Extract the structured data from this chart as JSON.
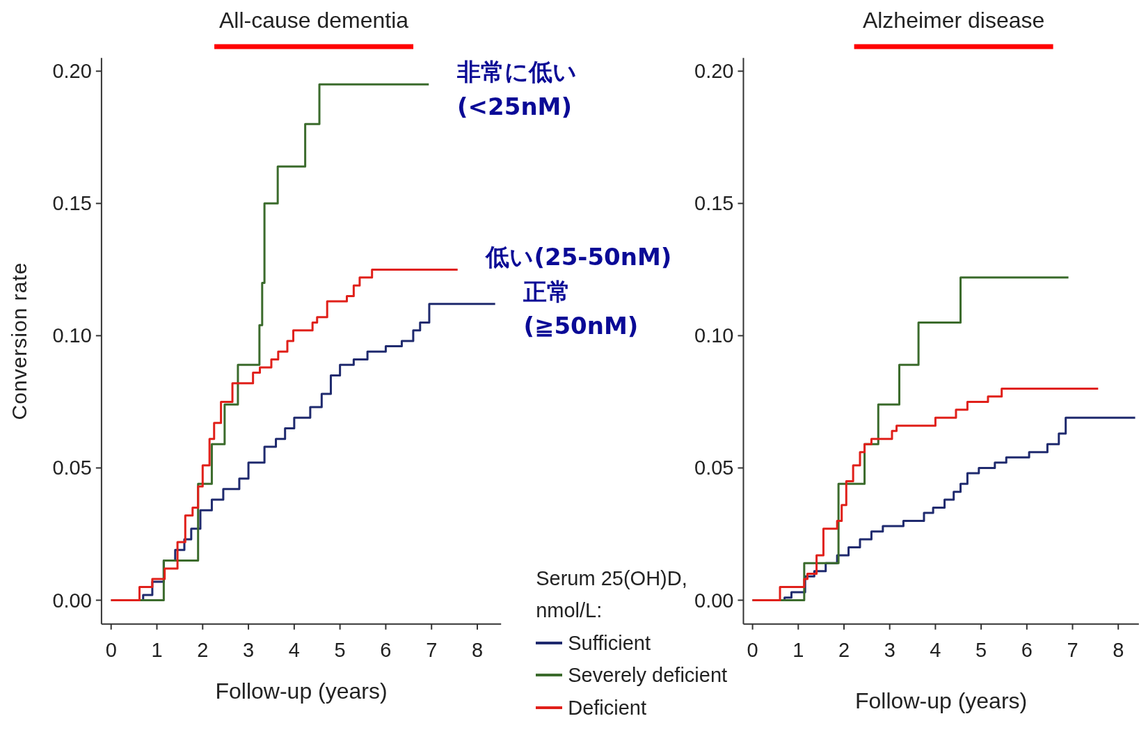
{
  "chart_data": [
    {
      "type": "step",
      "title": "All-cause dementia",
      "xlabel": "Follow-up (years)",
      "ylabel": "Conversion rate",
      "legend_title": "Serum 25(OH)D, nmol/L:",
      "legend": "bottom right",
      "xlim": [
        -0.21,
        8.52
      ],
      "ylim": [
        -0.009,
        0.205
      ],
      "xticks": [
        0,
        1,
        2,
        3,
        4,
        5,
        6,
        7,
        8
      ],
      "yticks": [
        {
          "value": 0,
          "label": "0.00"
        },
        {
          "value": 0.05,
          "label": "0.05"
        },
        {
          "value": 0.1,
          "label": "0.10"
        },
        {
          "value": 0.15,
          "label": "0.15"
        },
        {
          "value": 0.2,
          "label": "0.20"
        }
      ],
      "series": [
        {
          "name": "Sufficient",
          "color": "#1f2a6e",
          "x": [
            0,
            0.7,
            0.9,
            1.15,
            1.4,
            1.6,
            1.75,
            1.95,
            2.2,
            2.45,
            2.8,
            3.0,
            3.35,
            3.6,
            3.8,
            4.0,
            4.35,
            4.6,
            4.8,
            5.0,
            5.3,
            5.6,
            6.0,
            6.35,
            6.6,
            6.75,
            6.95,
            8.39
          ],
          "values": [
            0,
            0.002,
            0.007,
            0.015,
            0.019,
            0.023,
            0.027,
            0.034,
            0.038,
            0.042,
            0.046,
            0.052,
            0.058,
            0.061,
            0.065,
            0.069,
            0.073,
            0.078,
            0.085,
            0.089,
            0.091,
            0.094,
            0.096,
            0.098,
            0.102,
            0.105,
            0.112,
            0.112
          ]
        },
        {
          "name": "Severely deficient",
          "color": "#3b6b2c",
          "x": [
            0,
            1.15,
            1.9,
            2.2,
            2.48,
            2.77,
            3.24,
            3.3,
            3.35,
            3.64,
            4.24,
            4.55,
            6.94
          ],
          "values": [
            0,
            0.015,
            0.044,
            0.059,
            0.074,
            0.089,
            0.104,
            0.12,
            0.15,
            0.164,
            0.18,
            0.195,
            0.195
          ]
        },
        {
          "name": "Deficient",
          "color": "#e0201a",
          "x": [
            0,
            0.62,
            0.9,
            1.17,
            1.45,
            1.62,
            1.78,
            1.9,
            2.0,
            2.15,
            2.25,
            2.4,
            2.65,
            3.1,
            3.25,
            3.5,
            3.65,
            3.85,
            3.98,
            4.4,
            4.5,
            4.72,
            5.15,
            5.3,
            5.43,
            5.7,
            7.57
          ],
          "values": [
            0,
            0.005,
            0.008,
            0.012,
            0.022,
            0.032,
            0.035,
            0.043,
            0.051,
            0.061,
            0.067,
            0.075,
            0.082,
            0.086,
            0.088,
            0.091,
            0.094,
            0.098,
            0.102,
            0.105,
            0.107,
            0.113,
            0.115,
            0.119,
            0.122,
            0.125,
            0.125
          ]
        }
      ],
      "annotations": [
        {
          "text": "非常に低い (<25nM)",
          "x": 6.94,
          "y": 0.195
        },
        {
          "text": "低い(25-50nM)",
          "x": 7.57,
          "y": 0.125
        },
        {
          "text": "正常 (≧50nM)",
          "x": 8.39,
          "y": 0.112
        }
      ]
    },
    {
      "type": "step",
      "title": "Alzheimer disease",
      "xlabel": "Follow-up (years)",
      "xlim": [
        -0.2,
        8.45
      ],
      "ylim": [
        -0.009,
        0.205
      ],
      "xticks": [
        0,
        1,
        2,
        3,
        4,
        5,
        6,
        7,
        8
      ],
      "yticks": [
        {
          "value": 0,
          "label": "0.00"
        },
        {
          "value": 0.05,
          "label": "0.05"
        },
        {
          "value": 0.1,
          "label": "0.10"
        },
        {
          "value": 0.15,
          "label": "0.15"
        },
        {
          "value": 0.2,
          "label": "0.20"
        }
      ],
      "series": [
        {
          "color": "#1f2a6e",
          "x": [
            0,
            0.7,
            0.85,
            1.15,
            1.35,
            1.6,
            1.85,
            2.1,
            2.35,
            2.6,
            2.85,
            3.3,
            3.75,
            3.95,
            4.2,
            4.4,
            4.55,
            4.7,
            4.95,
            5.3,
            5.55,
            6.05,
            6.45,
            6.7,
            6.85,
            8.37
          ],
          "values": [
            0,
            0.001,
            0.003,
            0.009,
            0.011,
            0.014,
            0.017,
            0.02,
            0.023,
            0.026,
            0.028,
            0.03,
            0.033,
            0.035,
            0.038,
            0.041,
            0.044,
            0.048,
            0.05,
            0.052,
            0.054,
            0.056,
            0.059,
            0.063,
            0.069,
            0.069
          ]
        },
        {
          "color": "#3b6b2c",
          "x": [
            0,
            1.13,
            1.88,
            2.45,
            2.75,
            3.21,
            3.63,
            4.55,
            6.91
          ],
          "values": [
            0,
            0.014,
            0.044,
            0.059,
            0.074,
            0.089,
            0.105,
            0.122,
            0.122
          ]
        },
        {
          "color": "#e0201a",
          "x": [
            0,
            0.6,
            1.13,
            1.2,
            1.4,
            1.55,
            1.85,
            1.95,
            2.05,
            2.2,
            2.35,
            2.45,
            2.6,
            3.05,
            3.15,
            4.0,
            4.45,
            4.7,
            5.15,
            5.45,
            7.56
          ],
          "values": [
            0,
            0.005,
            0.008,
            0.01,
            0.017,
            0.027,
            0.03,
            0.036,
            0.045,
            0.051,
            0.056,
            0.059,
            0.061,
            0.064,
            0.066,
            0.069,
            0.072,
            0.075,
            0.077,
            0.08,
            0.08
          ]
        }
      ]
    }
  ]
}
